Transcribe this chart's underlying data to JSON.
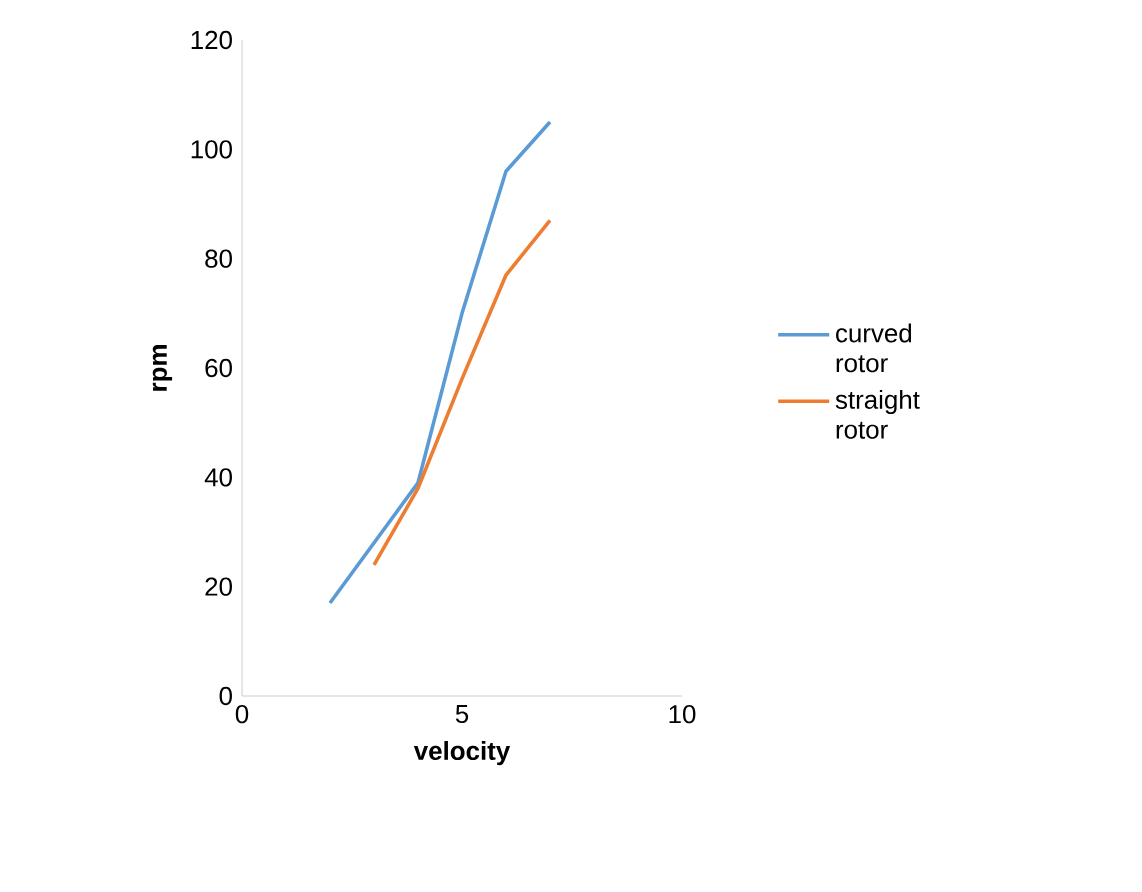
{
  "chart_data": {
    "type": "line",
    "xlabel": "velocity",
    "ylabel": "rpm",
    "xlim": [
      0,
      10
    ],
    "xticks": [
      0,
      5,
      10
    ],
    "ylim": [
      0,
      120
    ],
    "yticks": [
      0,
      20,
      40,
      60,
      80,
      100,
      120
    ],
    "grid": false,
    "legend": "right",
    "marker": "none",
    "line_style": "solid",
    "series": [
      {
        "name": "curved rotor",
        "color": "#5b9bd5",
        "x": [
          2,
          4,
          5,
          6,
          7
        ],
        "values": [
          17,
          39,
          70,
          96,
          105
        ]
      },
      {
        "name": "straight rotor",
        "color": "#ed7d31",
        "x": [
          3,
          4,
          5,
          6,
          7
        ],
        "values": [
          24,
          38,
          58,
          77,
          87
        ]
      }
    ]
  }
}
